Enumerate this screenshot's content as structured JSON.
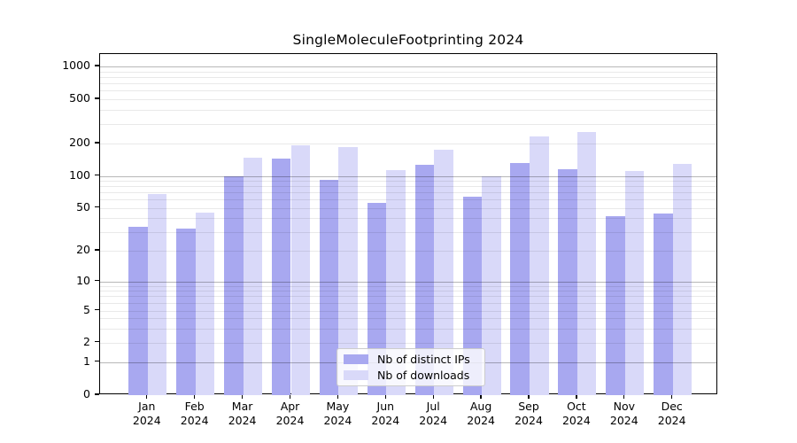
{
  "title": "SingleMoleculeFootprinting 2024",
  "chart_data": {
    "type": "bar",
    "categories": [
      "Jan 2024",
      "Feb 2024",
      "Mar 2024",
      "Apr 2024",
      "May 2024",
      "Jun 2024",
      "Jul 2024",
      "Aug 2024",
      "Sep 2024",
      "Oct 2024",
      "Nov 2024",
      "Dec 2024"
    ],
    "series": [
      {
        "name": "Nb of distinct IPs",
        "color": "#a8a8f0",
        "values": [
          33,
          32,
          99,
          145,
          91,
          56,
          128,
          63,
          132,
          115,
          42,
          44
        ]
      },
      {
        "name": "Nb of downloads",
        "color": "#d9d9f9",
        "values": [
          68,
          45,
          148,
          192,
          187,
          114,
          176,
          100,
          230,
          252,
          112,
          129
        ]
      }
    ],
    "title": "SingleMoleculeFootprinting 2024",
    "xlabel": "",
    "ylabel": "",
    "yscale": "log-like (symlog, linear below 1)",
    "yticks": [
      1000,
      500,
      200,
      100,
      50,
      20,
      10,
      5,
      2,
      1,
      0
    ],
    "ylim": [
      0,
      1300
    ],
    "grid": "horizontal major gridlines at 1,10,100,1000 (gray) plus faint log minor gridlines",
    "legend_position": "inside plot, lower center"
  }
}
